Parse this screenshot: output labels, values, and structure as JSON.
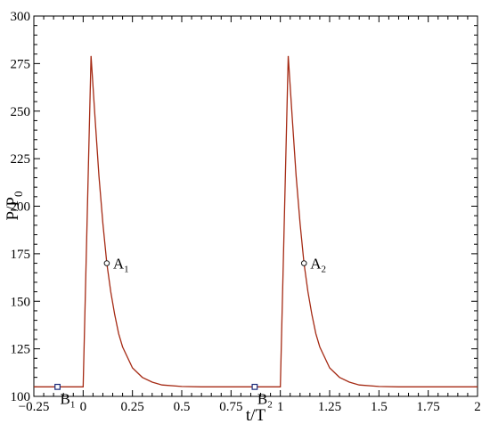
{
  "chart_data": {
    "type": "line",
    "title": "",
    "xlabel": "t/T",
    "ylabel": {
      "main": "P/P",
      "sub": "0"
    },
    "xlim": [
      -0.25,
      2
    ],
    "ylim": [
      100,
      300
    ],
    "xticks": [
      -0.25,
      0,
      0.25,
      0.5,
      0.75,
      1,
      1.25,
      1.5,
      1.75,
      2
    ],
    "xtick_labels": [
      "-0.25",
      "0",
      "0.25",
      "0.5",
      "0.75",
      "1",
      "1.25",
      "1.5",
      "1.75",
      "2"
    ],
    "yticks": [
      100,
      125,
      150,
      175,
      200,
      225,
      250,
      275,
      300
    ],
    "ytick_labels": [
      "100",
      "125",
      "150",
      "175",
      "200",
      "225",
      "250",
      "275",
      "300"
    ],
    "grid": false,
    "colors": {
      "line": "#a52a14",
      "marker_circle": "#1a1a1a",
      "marker_square": "#1a2a7a"
    },
    "series": [
      {
        "x": [
          -0.25,
          0.0,
          0.04,
          0.06,
          0.08,
          0.1,
          0.12,
          0.14,
          0.16,
          0.18,
          0.2,
          0.25,
          0.3,
          0.35,
          0.4,
          0.5,
          0.6,
          0.75,
          0.9,
          1.0,
          1.04,
          1.06,
          1.08,
          1.1,
          1.12,
          1.14,
          1.16,
          1.18,
          1.2,
          1.25,
          1.3,
          1.35,
          1.4,
          1.5,
          1.6,
          1.75,
          2.0
        ],
        "y": [
          105,
          105,
          279,
          247,
          216,
          191,
          170,
          155,
          143,
          133,
          126,
          115,
          110,
          107.5,
          106,
          105.2,
          105,
          105,
          105,
          105,
          279,
          247,
          216,
          191,
          170,
          155,
          143,
          133,
          126,
          115,
          110,
          107.5,
          106,
          105.2,
          105,
          105,
          105
        ]
      }
    ],
    "annotations": [
      {
        "label": "A",
        "sub": "1",
        "x": 0.12,
        "y": 170,
        "marker": "circle"
      },
      {
        "label": "A",
        "sub": "2",
        "x": 1.12,
        "y": 170,
        "marker": "circle"
      },
      {
        "label": "B",
        "sub": "1",
        "x": -0.13,
        "y": 105,
        "marker": "square"
      },
      {
        "label": "B",
        "sub": "2",
        "x": 0.87,
        "y": 105,
        "marker": "square"
      }
    ]
  }
}
